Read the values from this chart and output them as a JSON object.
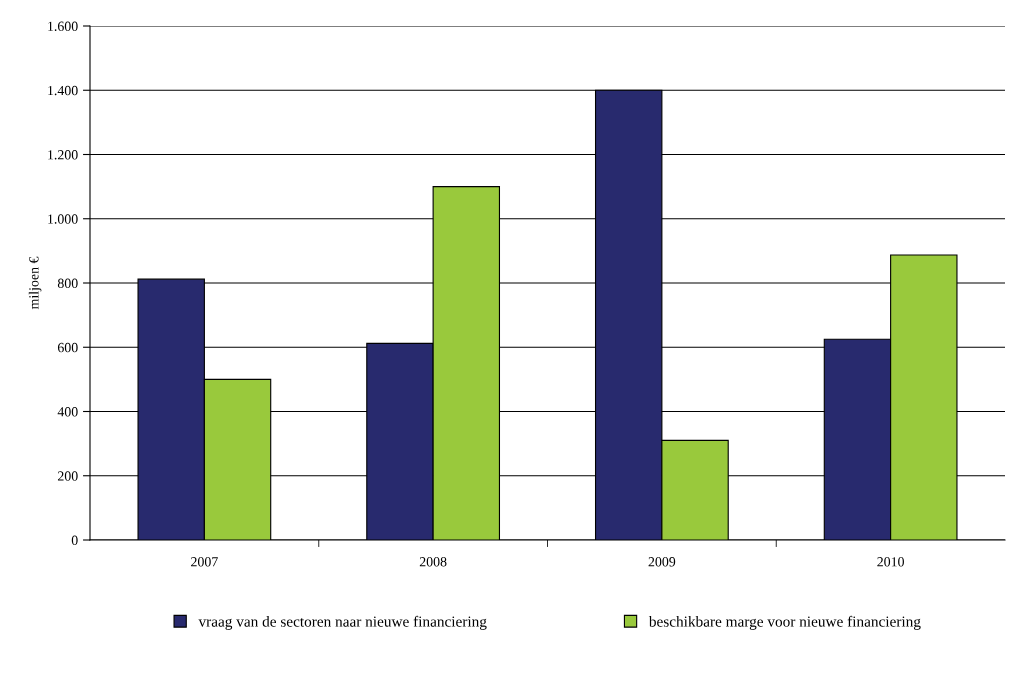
{
  "chart_data": {
    "type": "bar",
    "ylabel": "miljoen €",
    "categories": [
      "2007",
      "2008",
      "2009",
      "2010"
    ],
    "series": [
      {
        "name": "vraag van de sectoren naar nieuwe financiering",
        "color": "#282a6e",
        "values": [
          812,
          612,
          1400,
          625
        ]
      },
      {
        "name": "beschikbare marge voor nieuwe financiering",
        "color": "#99c93c",
        "values": [
          500,
          1100,
          310,
          887
        ]
      }
    ],
    "ylim": [
      0,
      1600
    ],
    "yticks": [
      {
        "value": 0,
        "label": "0"
      },
      {
        "value": 200,
        "label": "200"
      },
      {
        "value": 400,
        "label": "400"
      },
      {
        "value": 600,
        "label": "600"
      },
      {
        "value": 800,
        "label": "800"
      },
      {
        "value": 1000,
        "label": "1.000"
      },
      {
        "value": 1200,
        "label": "1.200"
      },
      {
        "value": 1400,
        "label": "1.400"
      },
      {
        "value": 1600,
        "label": "1.600"
      }
    ],
    "grid": "y",
    "legend": "bottom"
  }
}
